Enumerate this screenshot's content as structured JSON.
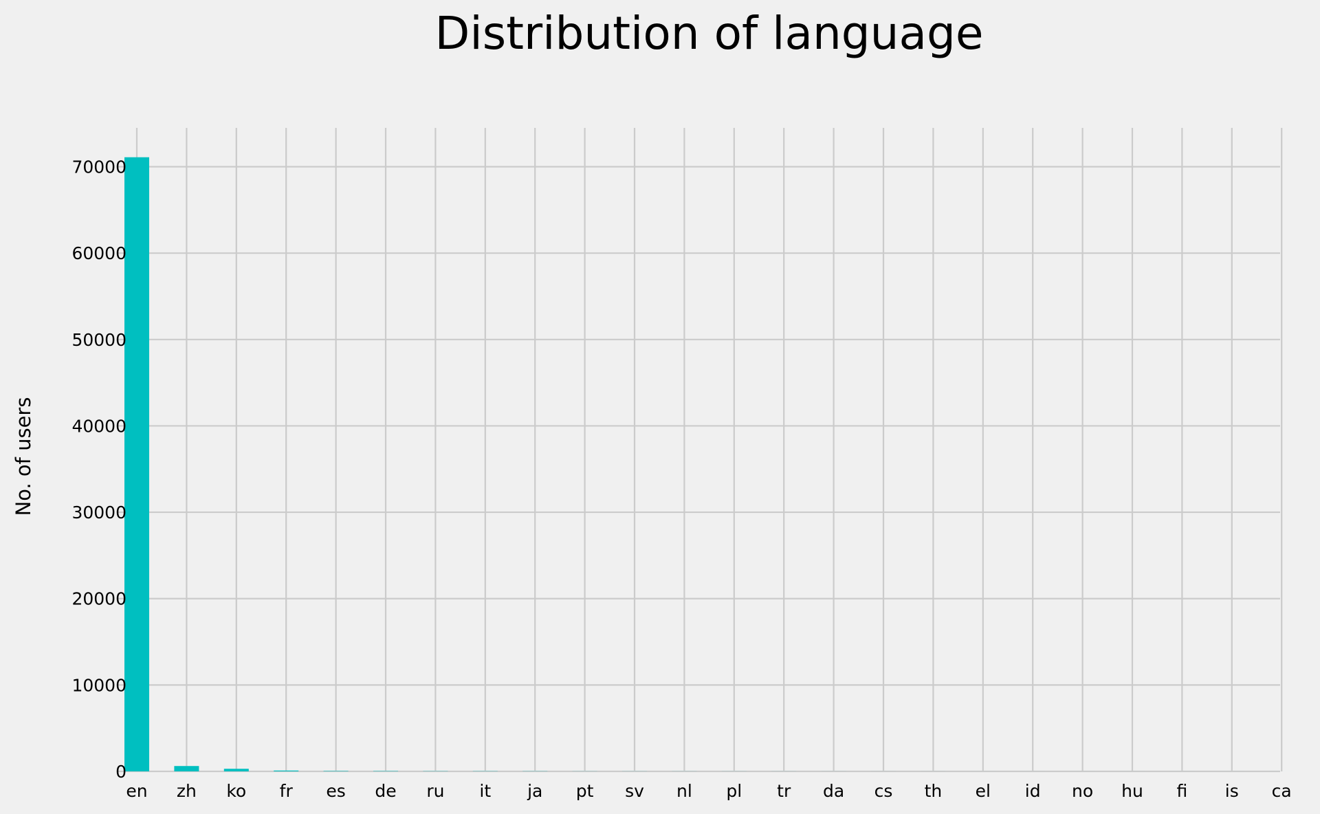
{
  "chart_data": {
    "type": "bar",
    "title": "Distribution of language",
    "xlabel": "",
    "ylabel": "No. of users",
    "categories": [
      "en",
      "zh",
      "ko",
      "fr",
      "es",
      "de",
      "ru",
      "it",
      "ja",
      "pt",
      "sv",
      "nl",
      "pl",
      "tr",
      "da",
      "cs",
      "th",
      "el",
      "id",
      "no",
      "hu",
      "fi",
      "is",
      "ca"
    ],
    "values": [
      71100,
      620,
      300,
      95,
      45,
      37,
      23,
      22,
      18,
      9,
      8,
      7,
      5,
      4,
      3,
      2,
      2,
      1,
      1,
      1,
      1,
      1,
      1,
      1
    ],
    "yticks": [
      0,
      10000,
      20000,
      30000,
      40000,
      50000,
      60000,
      70000
    ],
    "ylim": [
      0,
      74500
    ],
    "grid": true,
    "bar_color": "#00bfc0",
    "background_color": "#f0f0f0",
    "grid_color": "#cbcbcb"
  }
}
